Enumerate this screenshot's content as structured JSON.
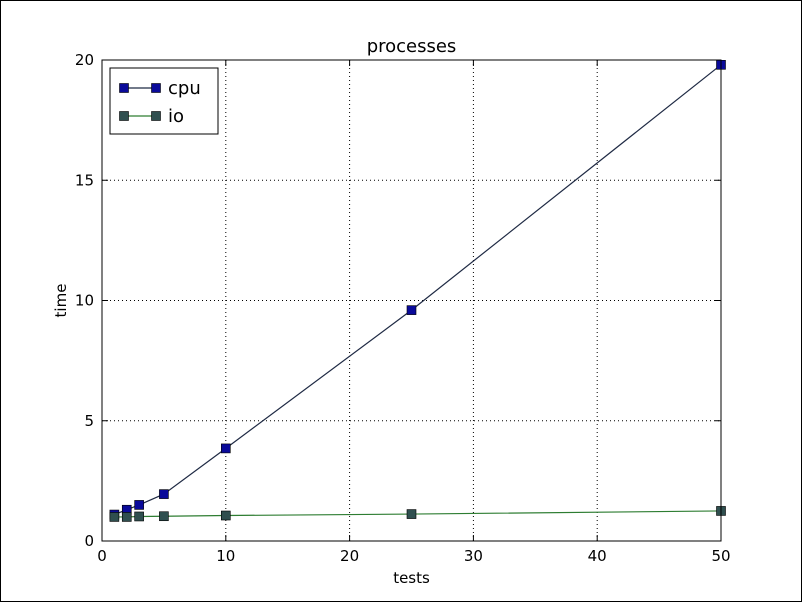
{
  "chart_data": {
    "type": "line",
    "title": "processes",
    "xlabel": "tests",
    "ylabel": "time",
    "xlim": [
      0,
      50
    ],
    "ylim": [
      0,
      20
    ],
    "xticks": [
      0,
      10,
      20,
      30,
      40,
      50
    ],
    "yticks": [
      0,
      5,
      10,
      15,
      20
    ],
    "grid": true,
    "legend_position": "top-left",
    "series": [
      {
        "name": "cpu",
        "color": "#0a0a9a",
        "line_color": "#1f2a44",
        "marker": "square",
        "x": [
          1,
          2,
          3,
          5,
          10,
          25,
          50
        ],
        "y": [
          1.1,
          1.3,
          1.5,
          1.95,
          3.85,
          9.6,
          19.8
        ]
      },
      {
        "name": "io",
        "color": "#2f4f4f",
        "line_color": "#2e7d32",
        "marker": "square",
        "x": [
          1,
          2,
          3,
          5,
          10,
          25,
          50
        ],
        "y": [
          1.0,
          1.0,
          1.02,
          1.03,
          1.06,
          1.12,
          1.25
        ]
      }
    ]
  }
}
